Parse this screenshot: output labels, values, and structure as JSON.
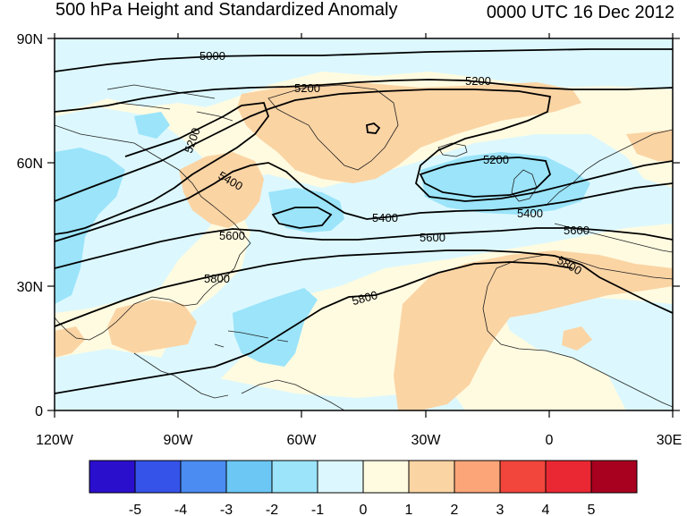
{
  "title": "500 hPa Height and Standardized Anomaly",
  "valid_time": "0000 UTC 16 Dec 2012",
  "lat_labels": [
    "90N",
    "60N",
    "30N",
    "0"
  ],
  "lon_labels": [
    "120W",
    "90W",
    "60W",
    "30W",
    "0",
    "30E"
  ],
  "contour_labels": [
    "5000",
    "5200",
    "5200",
    "5200",
    "5200",
    "5400",
    "5400",
    "5400",
    "5600",
    "5600",
    "5600",
    "5800",
    "5800",
    "5800"
  ],
  "colorbar": {
    "labels": [
      "-5",
      "-4",
      "-3",
      "-2",
      "-1",
      "0",
      "1",
      "2",
      "3",
      "4",
      "5"
    ],
    "colors": [
      "#2a0fcc",
      "#3553e8",
      "#4a8cf2",
      "#6cc7f5",
      "#9be4fa",
      "#dcf8fe",
      "#fffbe0",
      "#fbd4a4",
      "#fba578",
      "#f2463c",
      "#ea2833",
      "#a8001f"
    ]
  },
  "colors": {
    "land_outline": "#222222",
    "contour": "#000000"
  }
}
